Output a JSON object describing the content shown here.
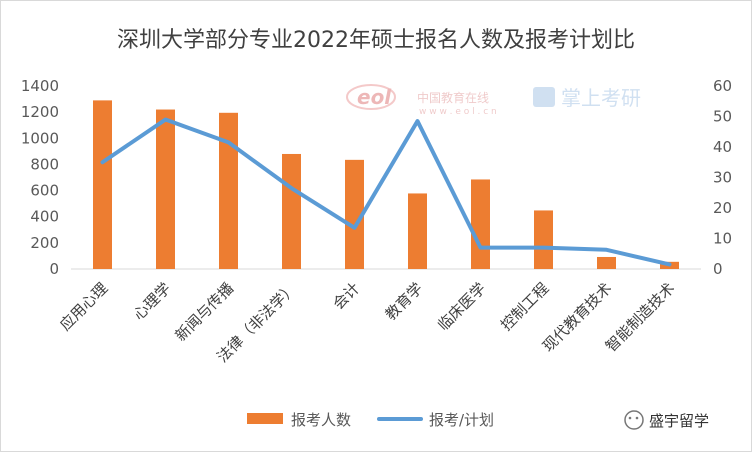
{
  "chart_data": {
    "type": "bar",
    "title": "深圳大学部分专业2022年硕士报名人数及报考计划比",
    "categories": [
      "应用心理",
      "心理学",
      "新闻与传播",
      "法律（非法学）",
      "会计",
      "教育学",
      "临床医学",
      "控制工程",
      "现代教育技术",
      "智能制造技术"
    ],
    "series": [
      {
        "name": "报考人数",
        "type": "bar",
        "axis": "left",
        "color": "#ED7D31",
        "values": [
          1290,
          1220,
          1195,
          880,
          835,
          578,
          685,
          448,
          92,
          55
        ]
      },
      {
        "name": "报考/计划",
        "type": "line",
        "axis": "right",
        "color": "#5B9BD5",
        "values": [
          35,
          49,
          41.5,
          26.5,
          13.5,
          48.5,
          7,
          7,
          6.3,
          1.5
        ]
      }
    ],
    "ylim": [
      0,
      1400
    ],
    "yticks": [
      "0",
      "200",
      "400",
      "600",
      "800",
      "1000",
      "1200",
      "1400"
    ],
    "y2lim": [
      0,
      60
    ],
    "y2ticks": [
      "0",
      "10",
      "20",
      "30",
      "40",
      "50",
      "60"
    ],
    "legend_position": "bottom",
    "grid": false
  },
  "watermarks": {
    "eol_logo": "eol",
    "eol_cn": "中国教育在线",
    "eol_url": "w w w . e o l . c n",
    "zsky": "掌上考研"
  },
  "brand": {
    "name": "盛宇留学"
  }
}
